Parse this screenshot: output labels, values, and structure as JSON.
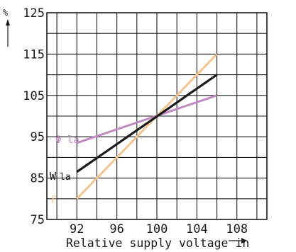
{
  "chart_data": {
    "type": "line",
    "xlabel": "Relative supply voltage in",
    "ylabel": "%",
    "xlim": [
      89,
      111
    ],
    "ylim": [
      75,
      125
    ],
    "x_ticks": [
      92,
      96,
      100,
      104,
      108
    ],
    "y_ticks": [
      75,
      85,
      95,
      105,
      115,
      125
    ],
    "x_grid": [
      90,
      92,
      94,
      96,
      98,
      100,
      102,
      104,
      106,
      108,
      110
    ],
    "y_grid": [
      75,
      80,
      85,
      90,
      95,
      100,
      105,
      110,
      115,
      120,
      125
    ],
    "grid": true,
    "series": [
      {
        "name": "W la",
        "label_parts": [
          "W",
          "la"
        ],
        "color": "#1a1a1a",
        "x": [
          92,
          106
        ],
        "y": [
          86.5,
          110
        ]
      },
      {
        "name": "F",
        "color": "#f5c48e",
        "x": [
          92,
          106
        ],
        "y": [
          80,
          115
        ]
      },
      {
        "name": "Φ la",
        "color": "#c28ac2",
        "x": [
          92,
          106
        ],
        "y": [
          93.5,
          105
        ]
      }
    ]
  }
}
